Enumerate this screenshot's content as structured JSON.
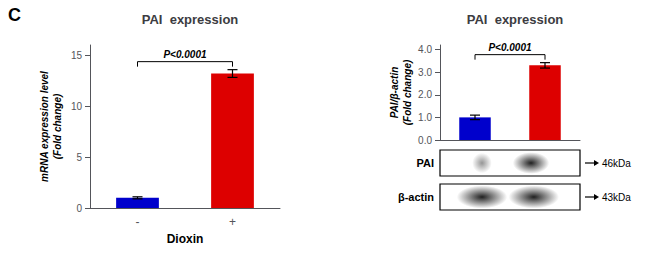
{
  "chart_data": [
    {
      "type": "bar",
      "title": "PAI  expression",
      "panel_label": "C",
      "categories": [
        "-",
        "+"
      ],
      "values": [
        1.0,
        13.2
      ],
      "errors": [
        0.1,
        0.38
      ],
      "colors": [
        "#0000cc",
        "#dd0000"
      ],
      "ylabel": "mRNA expression level\n(Fold change)",
      "xlabel": "Dioxin",
      "ylim": [
        0,
        16
      ],
      "yticks": [
        0,
        5,
        10,
        15
      ],
      "annotations": [
        "P<0.0001"
      ],
      "grid": false
    },
    {
      "type": "bar",
      "title": "PAI  expression",
      "categories": [
        null,
        null
      ],
      "values": [
        1.0,
        3.3
      ],
      "errors": [
        0.1,
        0.12
      ],
      "colors": [
        "#0000cc",
        "#dd0000"
      ],
      "ylabel": "PAI/β-actin\n(Fold change)",
      "ylim": [
        0,
        4.2
      ],
      "yticks": [
        {
          "value": 0,
          "label": "0.0"
        },
        {
          "value": 1,
          "label": "1.0"
        },
        {
          "value": 2,
          "label": "2.0"
        },
        {
          "value": 3,
          "label": "3.0"
        },
        {
          "value": 4,
          "label": "4.0"
        }
      ],
      "annotations": [
        "P<0.0001"
      ],
      "blot_labels": [
        "PAI",
        "β-actin"
      ],
      "blot_kda": [
        "46kDa",
        "43kDa"
      ],
      "tick_labels": "y",
      "grid": false
    }
  ]
}
